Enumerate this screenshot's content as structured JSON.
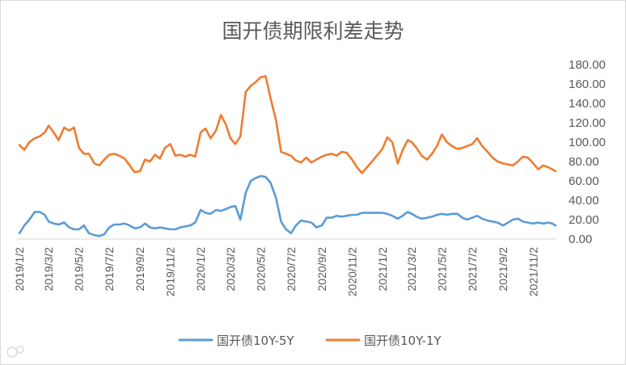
{
  "chart_data": {
    "type": "line",
    "title": "国开债期限利差走势",
    "xlabel": "",
    "ylabel": "",
    "ylim": [
      0,
      180
    ],
    "yaxis_position": "right",
    "grid": false,
    "legend": "bottom",
    "yticks": [
      "0.00",
      "20.00",
      "40.00",
      "60.00",
      "80.00",
      "100.00",
      "120.00",
      "140.00",
      "160.00",
      "180.00"
    ],
    "xticks": [
      "2019/1/2",
      "2019/3/2",
      "2019/5/2",
      "2019/7/2",
      "2019/9/2",
      "2019/11/2",
      "2020/1/2",
      "2020/3/2",
      "2020/5/2",
      "2020/7/2",
      "2020/9/2",
      "2020/11/2",
      "2021/1/2",
      "2021/3/2",
      "2021/5/2",
      "2021/7/2",
      "2021/9/2",
      "2021/11/2"
    ],
    "x": [
      "2019/1/2",
      "2019/1/12",
      "2019/1/22",
      "2019/2/2",
      "2019/2/12",
      "2019/2/22",
      "2019/3/2",
      "2019/3/12",
      "2019/3/22",
      "2019/4/2",
      "2019/4/12",
      "2019/4/22",
      "2019/5/2",
      "2019/5/12",
      "2019/5/22",
      "2019/6/2",
      "2019/6/12",
      "2019/6/22",
      "2019/7/2",
      "2019/7/12",
      "2019/7/22",
      "2019/8/2",
      "2019/8/12",
      "2019/8/22",
      "2019/9/2",
      "2019/9/12",
      "2019/9/22",
      "2019/10/2",
      "2019/10/12",
      "2019/10/22",
      "2019/11/2",
      "2019/11/12",
      "2019/11/22",
      "2019/12/2",
      "2019/12/12",
      "2019/12/22",
      "2020/1/2",
      "2020/1/12",
      "2020/1/22",
      "2020/2/2",
      "2020/2/12",
      "2020/2/22",
      "2020/3/2",
      "2020/3/12",
      "2020/3/22",
      "2020/4/2",
      "2020/4/12",
      "2020/4/22",
      "2020/5/2",
      "2020/5/12",
      "2020/5/22",
      "2020/6/2",
      "2020/6/12",
      "2020/6/22",
      "2020/7/2",
      "2020/7/12",
      "2020/7/22",
      "2020/8/2",
      "2020/8/12",
      "2020/8/22",
      "2020/9/2",
      "2020/9/12",
      "2020/9/22",
      "2020/10/2",
      "2020/10/12",
      "2020/10/22",
      "2020/11/2",
      "2020/11/12",
      "2020/11/22",
      "2020/12/2",
      "2020/12/12",
      "2020/12/22",
      "2021/1/2",
      "2021/1/12",
      "2021/1/22",
      "2021/2/2",
      "2021/2/12",
      "2021/2/22",
      "2021/3/2",
      "2021/3/12",
      "2021/3/22",
      "2021/4/2",
      "2021/4/12",
      "2021/4/22",
      "2021/5/2",
      "2021/5/12",
      "2021/5/22",
      "2021/6/2",
      "2021/6/12",
      "2021/6/22",
      "2021/7/2",
      "2021/7/12",
      "2021/7/22",
      "2021/8/2",
      "2021/8/12",
      "2021/8/22",
      "2021/9/2",
      "2021/9/12",
      "2021/9/22",
      "2021/10/2",
      "2021/10/12",
      "2021/10/22",
      "2021/11/2",
      "2021/11/12",
      "2021/11/22",
      "2021/12/2",
      "2021/12/10",
      "2021/12/17"
    ],
    "series": [
      {
        "name": "国开债10Y-5Y",
        "color": "#5B9BD5",
        "values": [
          6,
          14,
          20,
          28,
          28,
          25,
          18,
          16,
          15,
          17,
          12,
          10,
          10,
          14,
          6,
          4,
          3,
          5,
          12,
          15,
          15,
          16,
          14,
          11,
          12,
          16,
          12,
          11,
          12,
          11,
          10,
          10,
          12,
          13,
          14,
          17,
          30,
          27,
          26,
          30,
          29,
          31,
          33,
          34,
          20,
          48,
          60,
          63,
          65,
          64,
          58,
          42,
          18,
          10,
          6,
          14,
          19,
          18,
          17,
          12,
          14,
          22,
          22,
          24,
          23,
          24,
          25,
          25,
          27,
          27,
          27,
          27,
          27,
          26,
          24,
          21,
          24,
          28,
          26,
          23,
          21,
          22,
          23,
          25,
          26,
          25,
          26,
          26,
          22,
          20,
          22,
          24,
          21,
          19,
          18,
          17,
          14,
          17,
          20,
          21,
          18,
          17,
          16,
          17,
          16,
          17,
          16,
          14
        ]
      },
      {
        "name": "国开债10Y-1Y",
        "color": "#ED7D31",
        "values": [
          97,
          92,
          100,
          104,
          106,
          110,
          117,
          110,
          102,
          115,
          112,
          115,
          94,
          88,
          88,
          78,
          76,
          82,
          87,
          88,
          86,
          83,
          76,
          69,
          70,
          82,
          80,
          87,
          83,
          94,
          98,
          86,
          87,
          85,
          87,
          85,
          110,
          114,
          104,
          112,
          128,
          118,
          104,
          98,
          106,
          152,
          158,
          162,
          167,
          168,
          145,
          122,
          90,
          88,
          86,
          81,
          79,
          84,
          79,
          82,
          85,
          87,
          88,
          86,
          90,
          89,
          82,
          74,
          68,
          74,
          80,
          86,
          93,
          105,
          100,
          78,
          92,
          102,
          100,
          94,
          86,
          82,
          88,
          96,
          108,
          100,
          96,
          93,
          94,
          96,
          98,
          104,
          96,
          90,
          84,
          80,
          78,
          77,
          76,
          80,
          85,
          84,
          78,
          72,
          76,
          74,
          72,
          70
        ]
      }
    ]
  }
}
